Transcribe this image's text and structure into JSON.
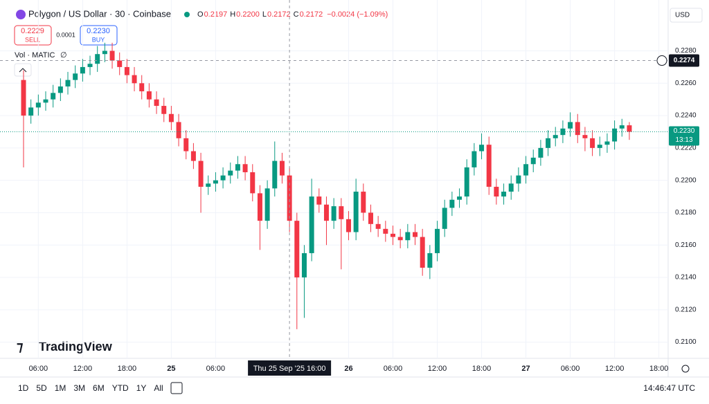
{
  "ui": {
    "symbol": "Polygon / US Dollar · 30 · Coinbase",
    "ohlc": [
      {
        "key": "O",
        "value": "0.2197"
      },
      {
        "key": "H",
        "value": "0.2200"
      },
      {
        "key": "L",
        "value": "0.2172"
      },
      {
        "key": "C",
        "value": "0.2172"
      }
    ],
    "change": "−0.0024 (−1.09%)",
    "sell": {
      "price": "0.2229",
      "label": "SELL"
    },
    "spread": "0.0001",
    "buy": {
      "price": "0.2230",
      "label": "BUY"
    },
    "volume_label": "Vol · MATIC",
    "volume_value": "∅",
    "currency": "USD",
    "logo": "TradingView",
    "ranges": [
      "1D",
      "5D",
      "1M",
      "3M",
      "6M",
      "YTD",
      "1Y",
      "All"
    ],
    "clock": "14:46:47 UTC"
  },
  "chart_data": {
    "type": "candlestick",
    "up_color": "#089981",
    "down_color": "#f23645",
    "open": [
      0.2262,
      0.224,
      0.2245,
      0.2248,
      0.225,
      0.2254,
      0.2258,
      0.2262,
      0.2266,
      0.227,
      0.2272,
      0.2278,
      0.228,
      0.2274,
      0.227,
      0.2265,
      0.226,
      0.2255,
      0.225,
      0.2246,
      0.2241,
      0.2236,
      0.2226,
      0.2218,
      0.2212,
      0.2196,
      0.2198,
      0.22,
      0.2203,
      0.2206,
      0.221,
      0.2205,
      0.2192,
      0.2175,
      0.2195,
      0.2212,
      0.2203,
      0.2175,
      0.214,
      0.2155,
      0.219,
      0.2185,
      0.2175,
      0.2184,
      0.2176,
      0.2168,
      0.2193,
      0.218,
      0.2173,
      0.217,
      0.2167,
      0.2165,
      0.2163,
      0.2168,
      0.2165,
      0.2146,
      0.2155,
      0.217,
      0.2183,
      0.2188,
      0.219,
      0.2208,
      0.2218,
      0.2222,
      0.2196,
      0.219,
      0.2193,
      0.2198,
      0.2203,
      0.221,
      0.2214,
      0.222,
      0.2226,
      0.2228,
      0.2232,
      0.2236,
      0.2228,
      0.2226,
      0.222,
      0.2222,
      0.2224,
      0.2232,
      0.2234
    ],
    "high": [
      0.2268,
      0.225,
      0.2253,
      0.2255,
      0.2259,
      0.2263,
      0.2267,
      0.2271,
      0.2275,
      0.2277,
      0.2283,
      0.2285,
      0.2285,
      0.2279,
      0.2275,
      0.227,
      0.2265,
      0.226,
      0.2255,
      0.2251,
      0.2246,
      0.2241,
      0.2231,
      0.2223,
      0.2217,
      0.2203,
      0.2205,
      0.2208,
      0.2211,
      0.2215,
      0.2215,
      0.221,
      0.2197,
      0.22,
      0.2224,
      0.2217,
      0.2208,
      0.218,
      0.216,
      0.2201,
      0.2195,
      0.219,
      0.2189,
      0.2189,
      0.2181,
      0.2201,
      0.2198,
      0.2185,
      0.2178,
      0.2175,
      0.2172,
      0.217,
      0.2173,
      0.2173,
      0.217,
      0.216,
      0.2175,
      0.2188,
      0.2193,
      0.2195,
      0.2213,
      0.2223,
      0.2229,
      0.2227,
      0.2201,
      0.2198,
      0.2203,
      0.2208,
      0.2215,
      0.2219,
      0.2225,
      0.2231,
      0.2233,
      0.2237,
      0.2242,
      0.2241,
      0.2233,
      0.2231,
      0.2227,
      0.2229,
      0.2237,
      0.2238,
      0.2236
    ],
    "low": [
      0.2208,
      0.2235,
      0.224,
      0.2243,
      0.2245,
      0.2249,
      0.2253,
      0.2257,
      0.2261,
      0.2265,
      0.2267,
      0.2273,
      0.2269,
      0.2265,
      0.226,
      0.2255,
      0.225,
      0.2245,
      0.2241,
      0.2236,
      0.2231,
      0.2221,
      0.2213,
      0.2207,
      0.218,
      0.2191,
      0.2193,
      0.2195,
      0.2198,
      0.2201,
      0.22,
      0.2187,
      0.2157,
      0.217,
      0.219,
      0.2198,
      0.2168,
      0.2108,
      0.2115,
      0.215,
      0.218,
      0.216,
      0.217,
      0.2145,
      0.2163,
      0.2163,
      0.2175,
      0.2168,
      0.2165,
      0.2162,
      0.216,
      0.2158,
      0.2158,
      0.216,
      0.2141,
      0.2139,
      0.215,
      0.2165,
      0.2178,
      0.2183,
      0.2185,
      0.2203,
      0.2213,
      0.2191,
      0.2185,
      0.2185,
      0.2188,
      0.2193,
      0.2198,
      0.2205,
      0.2209,
      0.2215,
      0.2221,
      0.2223,
      0.2227,
      0.2223,
      0.2218,
      0.2215,
      0.2215,
      0.2217,
      0.2219,
      0.2227,
      0.2225
    ],
    "close": [
      0.224,
      0.2245,
      0.2248,
      0.225,
      0.2254,
      0.2258,
      0.2262,
      0.2266,
      0.227,
      0.2272,
      0.2278,
      0.228,
      0.2274,
      0.227,
      0.2265,
      0.226,
      0.2255,
      0.225,
      0.2246,
      0.2241,
      0.2236,
      0.2226,
      0.2218,
      0.2212,
      0.2196,
      0.2198,
      0.22,
      0.2203,
      0.2206,
      0.221,
      0.2205,
      0.2192,
      0.2175,
      0.2195,
      0.2212,
      0.2203,
      0.2175,
      0.214,
      0.2155,
      0.219,
      0.2185,
      0.2175,
      0.2184,
      0.2176,
      0.2168,
      0.2193,
      0.218,
      0.2173,
      0.217,
      0.2167,
      0.2165,
      0.2163,
      0.2168,
      0.2165,
      0.2146,
      0.2155,
      0.217,
      0.2183,
      0.2188,
      0.219,
      0.2208,
      0.2218,
      0.2222,
      0.2196,
      0.219,
      0.2193,
      0.2198,
      0.2203,
      0.221,
      0.2214,
      0.222,
      0.2226,
      0.2228,
      0.2232,
      0.2236,
      0.2228,
      0.2226,
      0.222,
      0.2222,
      0.2224,
      0.2232,
      0.2234,
      0.223
    ],
    "ylim": [
      0.209,
      0.2308
    ],
    "yticks": [
      {
        "value": 0.21,
        "label": "0.2100"
      },
      {
        "value": 0.212,
        "label": "0.2120"
      },
      {
        "value": 0.214,
        "label": "0.2140"
      },
      {
        "value": 0.216,
        "label": "0.2160"
      },
      {
        "value": 0.218,
        "label": "0.2180"
      },
      {
        "value": 0.22,
        "label": "0.2200"
      },
      {
        "value": 0.222,
        "label": "0.2220"
      },
      {
        "value": 0.224,
        "label": "0.2240"
      },
      {
        "value": 0.226,
        "label": "0.2260"
      },
      {
        "value": 0.228,
        "label": "0.2280"
      }
    ],
    "xticks": [
      {
        "value": 2,
        "label": "06:00"
      },
      {
        "value": 8,
        "label": "12:00"
      },
      {
        "value": 14,
        "label": "18:00"
      },
      {
        "value": 20,
        "label": "25"
      },
      {
        "value": 26,
        "label": "06:00"
      },
      {
        "value": 44,
        "label": "26"
      },
      {
        "value": 50,
        "label": "06:00"
      },
      {
        "value": 56,
        "label": "12:00"
      },
      {
        "value": 62,
        "label": "18:00"
      },
      {
        "value": 68,
        "label": "27"
      },
      {
        "value": 74,
        "label": "06:00"
      },
      {
        "value": 80,
        "label": "12:00"
      },
      {
        "value": 86,
        "label": "18:00"
      }
    ],
    "crosshair_x": {
      "value": 36,
      "label": "Thu 25 Sep '25   16:00"
    },
    "crosshair_y": 0.2274,
    "last_price": {
      "value": 0.223,
      "label": "0.2230"
    },
    "countdown": "13:13"
  }
}
